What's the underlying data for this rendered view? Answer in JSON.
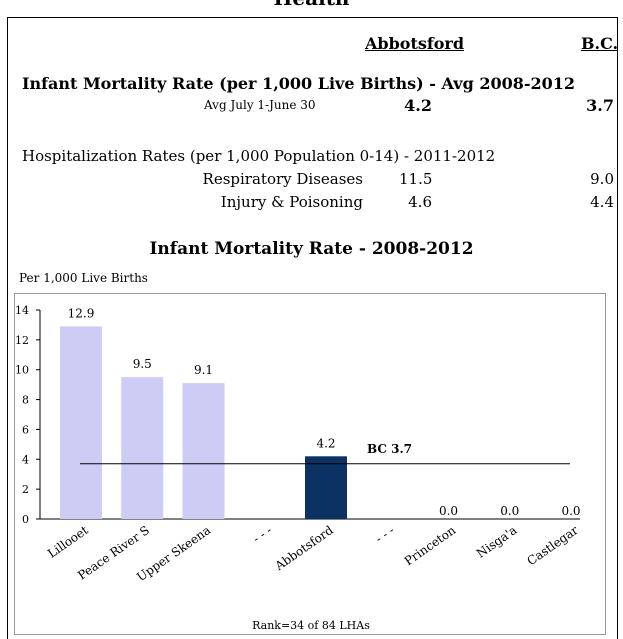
{
  "page_title": "Health",
  "summary": {
    "col_local": "Abbotsford",
    "col_prov": "B.C.",
    "imr": {
      "heading": "Infant Mortality Rate (per 1,000 Live Births) - Avg 2008-2012",
      "sub_label": "Avg July 1-June 30",
      "local": "4.2",
      "prov": "3.7"
    },
    "hosp": {
      "heading": "Hospitalization Rates (per 1,000 Population 0-14) - 2011-2012",
      "rows": [
        {
          "label": "Respiratory Diseases",
          "local": "11.5",
          "prov": "9.0"
        },
        {
          "label": "Injury & Poisoning",
          "local": "4.6",
          "prov": "4.4"
        }
      ]
    }
  },
  "chart_data": {
    "type": "bar",
    "title": "Infant Mortality Rate - 2008-2012",
    "ylabel": "Per 1,000 Live Births",
    "footer": "Rank=34 of 84 LHAs",
    "ylim": [
      0,
      14
    ],
    "yticks": [
      0,
      2,
      4,
      6,
      8,
      10,
      12,
      14
    ],
    "categories": [
      "Lillooet",
      "Peace River S",
      "Upper Skeena",
      "- - -",
      "Abbotsford",
      "- - -",
      "Princeton",
      "Nisga'a",
      "Castlegar"
    ],
    "values": [
      12.9,
      9.5,
      9.1,
      null,
      4.2,
      null,
      0.0,
      0.0,
      0.0
    ],
    "labels": [
      "12.9",
      "9.5",
      "9.1",
      "",
      "4.2",
      "",
      "0.0",
      "0.0",
      "0.0"
    ],
    "highlight_index": 4,
    "reference": {
      "label": "BC 3.7",
      "value": 3.7
    },
    "colors": {
      "bar": "#ccccf5",
      "highlight": "#0c3264",
      "line": "#000000"
    }
  }
}
